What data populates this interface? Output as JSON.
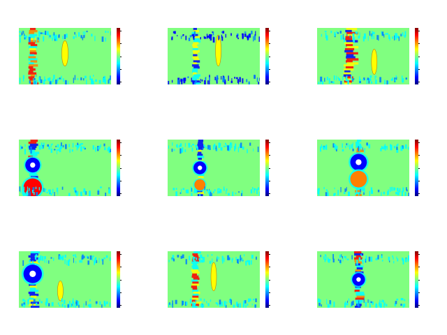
{
  "figure": {
    "background": "#ffffff",
    "field_background": "#80ff80",
    "colormap": "jet",
    "colormap_colors": [
      "#800000",
      "#ff0000",
      "#ff8000",
      "#ffff00",
      "#80ff80",
      "#00ffff",
      "#0080ff",
      "#0000ff",
      "#000080"
    ]
  },
  "chart_data": [
    {
      "type": "heatmap",
      "grid": "3x3",
      "panel_row": 1,
      "panel_col": 1,
      "colorbar": true,
      "features": [
        {
          "kind": "vertical-band",
          "dx": -0.35,
          "dy": 0,
          "w": 0.1,
          "h": 1.0,
          "palette": [
            "#ffff00",
            "#ff8000",
            "#ff0000",
            "#00ffff"
          ]
        },
        {
          "kind": "oval",
          "dx": 0.0,
          "dy": -0.05,
          "w": 0.07,
          "h": 0.45,
          "color": "#ffff00"
        },
        {
          "kind": "speckle-top",
          "color": "#00ffff"
        },
        {
          "kind": "speckle-bottom",
          "color": "#00ffff"
        }
      ]
    },
    {
      "type": "heatmap",
      "grid": "3x3",
      "panel_row": 1,
      "panel_col": 2,
      "colorbar": true,
      "features": [
        {
          "kind": "vertical-band",
          "dx": -0.2,
          "dy": 0,
          "w": 0.08,
          "h": 1.0,
          "palette": [
            "#0000ff",
            "#00ffff",
            "#ffff00"
          ]
        },
        {
          "kind": "oval",
          "dx": 0.05,
          "dy": -0.1,
          "w": 0.06,
          "h": 0.55,
          "color": "#ffff00"
        },
        {
          "kind": "speckle-top",
          "color": "#0000ff"
        },
        {
          "kind": "speckle-bottom",
          "color": "#0000ff"
        }
      ]
    },
    {
      "type": "heatmap",
      "grid": "3x3",
      "panel_row": 1,
      "panel_col": 3,
      "colorbar": true,
      "features": [
        {
          "kind": "vertical-band",
          "dx": -0.15,
          "dy": 0,
          "w": 0.13,
          "h": 1.0,
          "palette": [
            "#ff0000",
            "#0000ff",
            "#ffff00",
            "#ff0000"
          ]
        },
        {
          "kind": "oval",
          "dx": 0.12,
          "dy": 0.1,
          "w": 0.06,
          "h": 0.45,
          "color": "#ffff00"
        },
        {
          "kind": "speckle-top",
          "color": "#00ffff"
        },
        {
          "kind": "speckle-bottom",
          "color": "#00ffff"
        }
      ]
    },
    {
      "type": "heatmap",
      "grid": "3x3",
      "panel_row": 2,
      "panel_col": 1,
      "colorbar": true,
      "features": [
        {
          "kind": "vertical-band",
          "dx": -0.35,
          "dy": 0,
          "w": 0.1,
          "h": 1.0,
          "palette": [
            "#0000ff",
            "#00ffff",
            "#ff0000"
          ]
        },
        {
          "kind": "blob",
          "dx": -0.35,
          "dy": -0.05,
          "r": 0.08,
          "color": "#0000ff"
        },
        {
          "kind": "blob",
          "dx": -0.35,
          "dy": 0.35,
          "r": 0.1,
          "color": "#ff0000"
        },
        {
          "kind": "speckle-top",
          "color": "#00ffff"
        },
        {
          "kind": "speckle-bottom",
          "color": "#00ffff"
        }
      ]
    },
    {
      "type": "heatmap",
      "grid": "3x3",
      "panel_row": 2,
      "panel_col": 2,
      "colorbar": true,
      "features": [
        {
          "kind": "vertical-band",
          "dx": -0.15,
          "dy": 0,
          "w": 0.08,
          "h": 1.0,
          "palette": [
            "#00ffff",
            "#0000ff",
            "#ffff00"
          ]
        },
        {
          "kind": "blob",
          "dx": -0.15,
          "dy": 0.0,
          "r": 0.07,
          "color": "#0000ff"
        },
        {
          "kind": "blob",
          "dx": -0.15,
          "dy": 0.3,
          "r": 0.06,
          "color": "#ff8000"
        },
        {
          "kind": "speckle-top",
          "color": "#00ffff"
        },
        {
          "kind": "speckle-bottom",
          "color": "#00ffff"
        }
      ]
    },
    {
      "type": "heatmap",
      "grid": "3x3",
      "panel_row": 2,
      "panel_col": 3,
      "colorbar": true,
      "features": [
        {
          "kind": "vertical-band",
          "dx": -0.05,
          "dy": 0,
          "w": 0.08,
          "h": 1.0,
          "palette": [
            "#00ffff",
            "#ff8000",
            "#00ffff"
          ]
        },
        {
          "kind": "blob",
          "dx": -0.05,
          "dy": -0.1,
          "r": 0.09,
          "color": "#0000ff"
        },
        {
          "kind": "blob",
          "dx": -0.05,
          "dy": 0.2,
          "r": 0.09,
          "color": "#ff8000"
        },
        {
          "kind": "speckle-top",
          "color": "#00ffff"
        },
        {
          "kind": "speckle-bottom",
          "color": "#00ffff"
        }
      ]
    },
    {
      "type": "heatmap",
      "grid": "3x3",
      "panel_row": 3,
      "panel_col": 1,
      "colorbar": true,
      "features": [
        {
          "kind": "vertical-band",
          "dx": -0.35,
          "dy": 0,
          "w": 0.1,
          "h": 1.0,
          "palette": [
            "#00ffff",
            "#0000ff",
            "#ffff00"
          ]
        },
        {
          "kind": "blob",
          "dx": -0.35,
          "dy": -0.1,
          "r": 0.1,
          "color": "#0000ff"
        },
        {
          "kind": "oval",
          "dx": -0.05,
          "dy": 0.2,
          "w": 0.06,
          "h": 0.35,
          "color": "#ffff00"
        },
        {
          "kind": "speckle-top",
          "color": "#00ffff"
        },
        {
          "kind": "speckle-bottom",
          "color": "#00ffff"
        }
      ]
    },
    {
      "type": "heatmap",
      "grid": "3x3",
      "panel_row": 3,
      "panel_col": 2,
      "colorbar": true,
      "features": [
        {
          "kind": "vertical-band",
          "dx": -0.2,
          "dy": 0,
          "w": 0.09,
          "h": 1.0,
          "palette": [
            "#ffff00",
            "#00ffff",
            "#ff0000"
          ]
        },
        {
          "kind": "oval",
          "dx": 0.0,
          "dy": -0.05,
          "w": 0.06,
          "h": 0.5,
          "color": "#ffff00"
        },
        {
          "kind": "speckle-top",
          "color": "#00ffff"
        },
        {
          "kind": "speckle-bottom",
          "color": "#00ffff"
        }
      ]
    },
    {
      "type": "heatmap",
      "grid": "3x3",
      "panel_row": 3,
      "panel_col": 3,
      "colorbar": true,
      "features": [
        {
          "kind": "vertical-band",
          "dx": -0.05,
          "dy": 0,
          "w": 0.1,
          "h": 1.0,
          "palette": [
            "#ff0000",
            "#00ffff",
            "#0000ff",
            "#ff8000"
          ]
        },
        {
          "kind": "blob",
          "dx": -0.05,
          "dy": 0.0,
          "r": 0.07,
          "color": "#0000ff"
        },
        {
          "kind": "speckle-top",
          "color": "#00ffff"
        },
        {
          "kind": "speckle-bottom",
          "color": "#00ffff"
        }
      ]
    }
  ]
}
